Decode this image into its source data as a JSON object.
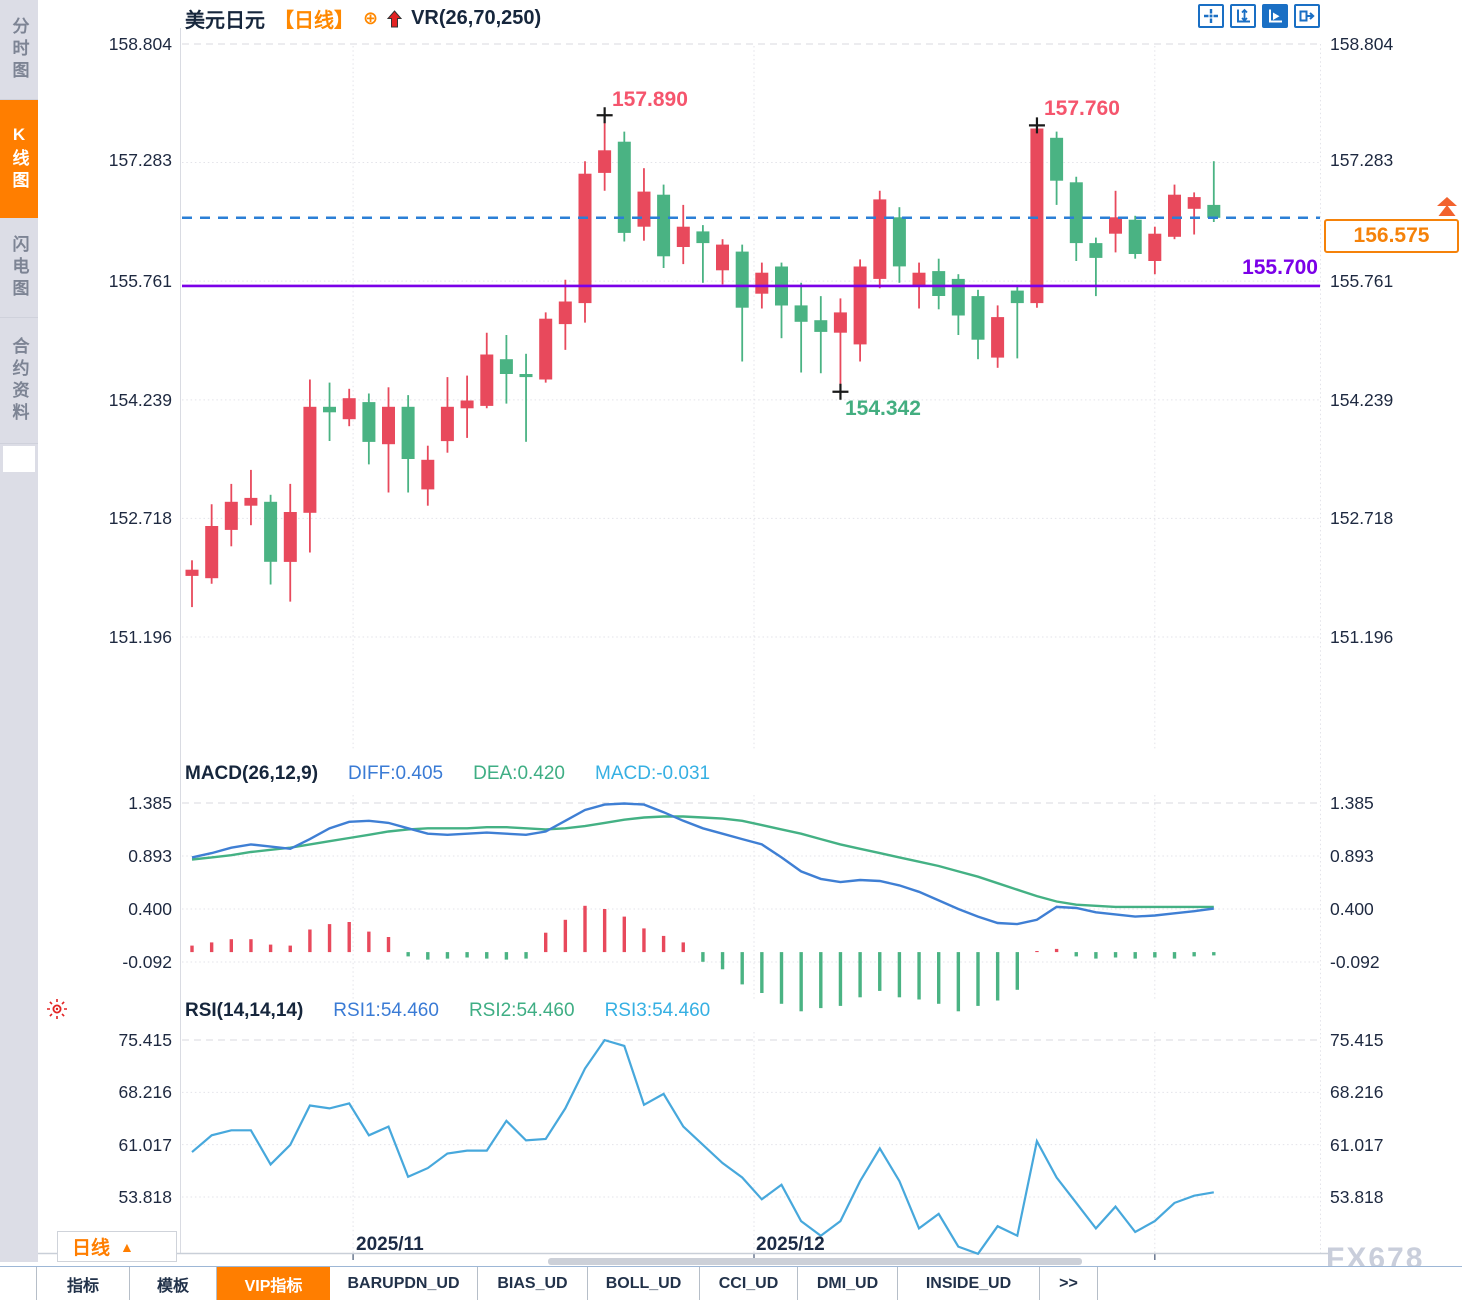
{
  "colors": {
    "up": "#e8495c",
    "down": "#4ab383",
    "diff_line": "#3f7fd4",
    "dea_line": "#44b184",
    "rsi_line": "#47a8dc",
    "price_dashed": "#2b7fd6",
    "support_purple": "#7b00e8",
    "accent_orange": "#ff7e00",
    "dark_text": "#1c2b45",
    "high_label": "#f5556d",
    "low_label": "#43ae80"
  },
  "sidebar": {
    "items": [
      {
        "label": "分时图",
        "active": false
      },
      {
        "label": "K线图",
        "active": true
      },
      {
        "label": "闪电图",
        "active": false
      },
      {
        "label": "合约资料",
        "active": false
      }
    ]
  },
  "header": {
    "symbol": "美元日元",
    "period_tag": "【日线】",
    "expand_icon": "⊕",
    "indicator": "VR(26,70,250)"
  },
  "toolbar": {
    "icons": [
      "crosshair-tool",
      "axis-zoom",
      "auto-play",
      "pan-right"
    ]
  },
  "macd_panel": {
    "title": "MACD(26,12,9)",
    "diff_label": "DIFF:0.405",
    "dea_label": "DEA:0.420",
    "macd_label": "MACD:-0.031"
  },
  "rsi_panel": {
    "title": "RSI(14,14,14)",
    "rsi1_label": "RSI1:54.460",
    "rsi2_label": "RSI2:54.460",
    "rsi3_label": "RSI3:54.460"
  },
  "footer": {
    "period": "日线",
    "period_arrow": "▲",
    "tabs": [
      {
        "label": "指标",
        "active": false
      },
      {
        "label": "模板",
        "active": false
      },
      {
        "label": "VIP指标",
        "active": true
      },
      {
        "label": "BARUPDN_UD",
        "active": false
      },
      {
        "label": "BIAS_UD",
        "active": false
      },
      {
        "label": "BOLL_UD",
        "active": false
      },
      {
        "label": "CCI_UD",
        "active": false
      },
      {
        "label": "DMI_UD",
        "active": false
      },
      {
        "label": "INSIDE_UD",
        "active": false
      },
      {
        "label": ">>",
        "active": false
      }
    ]
  },
  "watermark": "FX678",
  "chart_data": [
    {
      "type": "candlestick",
      "title": "美元日元 日线",
      "ylim": [
        151.196,
        158.804
      ],
      "y_ticks": [
        "158.804",
        "157.283",
        "155.761",
        "154.239",
        "152.718",
        "151.196"
      ],
      "x_ticks": [
        {
          "pos": 8.2,
          "label": "2025/11"
        },
        {
          "pos": 28.6,
          "label": "2025/12"
        },
        {
          "pos": 49.0,
          "label": ""
        }
      ],
      "overlays": {
        "support": "155.700",
        "current": "156.575"
      },
      "markers": [
        {
          "index": 21,
          "type": "high",
          "value": "157.890"
        },
        {
          "index": 43,
          "type": "high",
          "value": "157.760"
        },
        {
          "index": 33,
          "type": "low",
          "value": "154.342"
        }
      ],
      "ohlc": [
        [
          151.98,
          152.18,
          151.58,
          152.06
        ],
        [
          151.95,
          152.9,
          151.88,
          152.62
        ],
        [
          152.57,
          153.16,
          152.36,
          152.93
        ],
        [
          152.88,
          153.34,
          152.63,
          152.98
        ],
        [
          152.93,
          153.02,
          151.87,
          152.16
        ],
        [
          152.16,
          153.16,
          151.65,
          152.8
        ],
        [
          152.79,
          154.5,
          152.28,
          154.15
        ],
        [
          154.15,
          154.46,
          153.71,
          154.08
        ],
        [
          153.99,
          154.38,
          153.9,
          154.26
        ],
        [
          154.21,
          154.32,
          153.41,
          153.7
        ],
        [
          153.67,
          154.4,
          153.05,
          154.15
        ],
        [
          154.15,
          154.3,
          153.05,
          153.48
        ],
        [
          153.09,
          153.65,
          152.88,
          153.47
        ],
        [
          153.71,
          154.53,
          153.56,
          154.15
        ],
        [
          154.13,
          154.55,
          153.75,
          154.23
        ],
        [
          154.16,
          155.1,
          154.13,
          154.82
        ],
        [
          154.76,
          155.07,
          154.19,
          154.57
        ],
        [
          154.57,
          154.83,
          153.7,
          154.53
        ],
        [
          154.5,
          155.36,
          154.46,
          155.28
        ],
        [
          155.21,
          155.78,
          154.88,
          155.5
        ],
        [
          155.48,
          157.3,
          155.23,
          157.14
        ],
        [
          157.15,
          157.89,
          156.92,
          157.44
        ],
        [
          157.55,
          157.68,
          156.27,
          156.38
        ],
        [
          156.46,
          157.21,
          156.28,
          156.91
        ],
        [
          156.87,
          157.0,
          155.93,
          156.08
        ],
        [
          156.2,
          156.74,
          155.98,
          156.46
        ],
        [
          156.4,
          156.48,
          155.74,
          156.25
        ],
        [
          155.9,
          156.3,
          155.72,
          156.23
        ],
        [
          156.14,
          156.23,
          154.73,
          155.42
        ],
        [
          155.6,
          156.0,
          155.41,
          155.87
        ],
        [
          155.95,
          156.0,
          155.03,
          155.45
        ],
        [
          155.45,
          155.74,
          154.59,
          155.24
        ],
        [
          155.26,
          155.57,
          154.58,
          155.11
        ],
        [
          155.1,
          155.54,
          154.342,
          155.36
        ],
        [
          154.95,
          156.04,
          154.73,
          155.95
        ],
        [
          155.79,
          156.92,
          155.67,
          156.81
        ],
        [
          156.58,
          156.71,
          155.74,
          155.95
        ],
        [
          155.7,
          156.0,
          155.41,
          155.87
        ],
        [
          155.89,
          156.05,
          155.4,
          155.57
        ],
        [
          155.79,
          155.85,
          155.07,
          155.32
        ],
        [
          155.57,
          155.65,
          154.76,
          155.01
        ],
        [
          154.78,
          155.45,
          154.65,
          155.3
        ],
        [
          155.64,
          155.7,
          154.77,
          155.48
        ],
        [
          155.48,
          157.76,
          155.42,
          157.72
        ],
        [
          157.6,
          157.68,
          156.74,
          157.05
        ],
        [
          157.03,
          157.1,
          156.02,
          156.25
        ],
        [
          156.25,
          156.32,
          155.57,
          156.06
        ],
        [
          156.37,
          156.92,
          156.13,
          156.58
        ],
        [
          156.55,
          156.6,
          156.05,
          156.11
        ],
        [
          156.02,
          156.46,
          155.85,
          156.37
        ],
        [
          156.33,
          157.0,
          156.3,
          156.87
        ],
        [
          156.69,
          156.9,
          156.36,
          156.84
        ],
        [
          156.74,
          157.3,
          156.52,
          156.575
        ]
      ]
    },
    {
      "type": "macd",
      "params": "26,12,9",
      "y_ticks": [
        "1.385",
        "0.893",
        "0.400",
        "-0.092"
      ],
      "current": {
        "diff": 0.405,
        "dea": 0.42,
        "macd": -0.031
      },
      "diff": [
        0.88,
        0.92,
        0.97,
        1.0,
        0.98,
        0.96,
        1.05,
        1.15,
        1.21,
        1.22,
        1.2,
        1.15,
        1.1,
        1.09,
        1.1,
        1.11,
        1.1,
        1.09,
        1.12,
        1.22,
        1.32,
        1.37,
        1.38,
        1.37,
        1.3,
        1.22,
        1.15,
        1.1,
        1.05,
        1.0,
        0.88,
        0.75,
        0.68,
        0.65,
        0.67,
        0.66,
        0.62,
        0.56,
        0.48,
        0.4,
        0.33,
        0.27,
        0.26,
        0.3,
        0.42,
        0.41,
        0.37,
        0.35,
        0.33,
        0.34,
        0.36,
        0.38,
        0.405
      ],
      "dea": [
        0.86,
        0.88,
        0.9,
        0.93,
        0.95,
        0.97,
        1.0,
        1.03,
        1.06,
        1.09,
        1.12,
        1.14,
        1.15,
        1.15,
        1.15,
        1.16,
        1.16,
        1.15,
        1.14,
        1.15,
        1.17,
        1.2,
        1.23,
        1.25,
        1.26,
        1.26,
        1.25,
        1.24,
        1.22,
        1.18,
        1.14,
        1.1,
        1.05,
        1.0,
        0.96,
        0.92,
        0.88,
        0.84,
        0.8,
        0.75,
        0.7,
        0.64,
        0.58,
        0.52,
        0.47,
        0.44,
        0.43,
        0.42,
        0.42,
        0.42,
        0.42,
        0.42,
        0.42
      ],
      "histogram": [
        0.06,
        0.09,
        0.12,
        0.12,
        0.07,
        0.06,
        0.21,
        0.26,
        0.28,
        0.19,
        0.14,
        -0.04,
        -0.07,
        -0.06,
        -0.05,
        -0.06,
        -0.07,
        -0.06,
        0.18,
        0.3,
        0.43,
        0.4,
        0.33,
        0.22,
        0.15,
        0.09,
        -0.09,
        -0.16,
        -0.3,
        -0.38,
        -0.48,
        -0.55,
        -0.52,
        -0.5,
        -0.42,
        -0.36,
        -0.42,
        -0.44,
        -0.48,
        -0.55,
        -0.5,
        -0.45,
        -0.35,
        0.01,
        0.03,
        -0.04,
        -0.06,
        -0.05,
        -0.06,
        -0.05,
        -0.06,
        -0.04,
        -0.031
      ]
    },
    {
      "type": "line",
      "name": "RSI",
      "params": "14,14,14",
      "y_ticks": [
        "75.415",
        "68.216",
        "61.017",
        "53.818"
      ],
      "current": 54.46,
      "values": [
        60.0,
        62.3,
        63.0,
        63.0,
        58.3,
        61.0,
        66.4,
        66.0,
        66.7,
        62.3,
        63.5,
        56.6,
        57.8,
        59.8,
        60.2,
        60.2,
        64.3,
        61.6,
        61.8,
        66.0,
        71.5,
        75.4,
        74.6,
        66.5,
        68.0,
        63.5,
        61.0,
        58.5,
        56.5,
        53.5,
        55.5,
        50.5,
        48.5,
        50.5,
        56.0,
        60.5,
        56.0,
        49.5,
        51.5,
        47.0,
        46.0,
        49.8,
        48.5,
        61.5,
        56.5,
        53.0,
        49.5,
        52.5,
        49.0,
        50.5,
        53.0,
        54.0,
        54.46
      ]
    }
  ]
}
